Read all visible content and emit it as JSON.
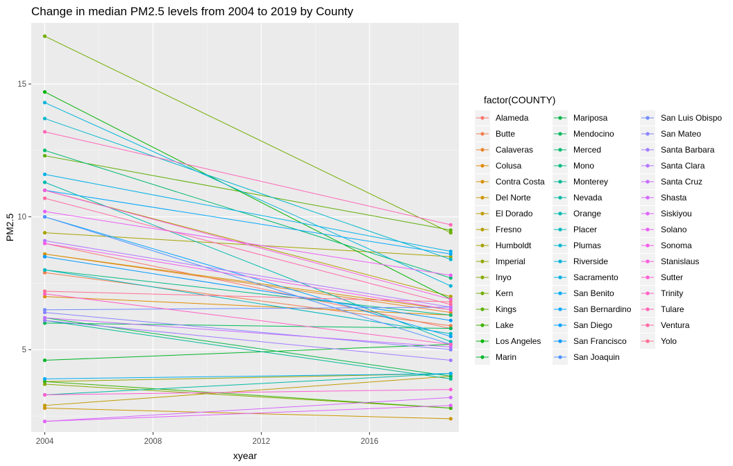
{
  "chart_data": {
    "type": "line",
    "title": "Change in median PM2.5 levels from 2004 to 2019 by County",
    "xlabel": "xyear",
    "ylabel": "PM2.5",
    "legend_title": "factor(COUNTY)",
    "legend_position": "right",
    "grid": true,
    "xlim": [
      2003.5,
      2019.3
    ],
    "ylim": [
      1.9,
      17.3
    ],
    "x_ticks": [
      2004,
      2008,
      2012,
      2016
    ],
    "y_ticks": [
      5,
      10,
      15
    ],
    "x": [
      2004,
      2019
    ],
    "series": [
      {
        "name": "Alameda",
        "color": "#F8766D",
        "values": [
          9.0,
          5.8
        ]
      },
      {
        "name": "Butte",
        "color": "#F17E4F",
        "values": [
          7.9,
          5.9
        ]
      },
      {
        "name": "Calaveras",
        "color": "#E98529",
        "values": [
          8.6,
          6.4
        ]
      },
      {
        "name": "Colusa",
        "color": "#E08B00",
        "values": [
          7.0,
          6.3
        ]
      },
      {
        "name": "Contra Costa",
        "color": "#D69100",
        "values": [
          8.6,
          6.5
        ]
      },
      {
        "name": "Del Norte",
        "color": "#CB9600",
        "values": [
          2.8,
          2.4
        ]
      },
      {
        "name": "El Dorado",
        "color": "#BF9B00",
        "values": [
          2.9,
          4.0
        ]
      },
      {
        "name": "Fresno",
        "color": "#B39F00",
        "values": [
          11.0,
          7.0
        ]
      },
      {
        "name": "Humboldt",
        "color": "#A5A300",
        "values": [
          9.4,
          8.5
        ]
      },
      {
        "name": "Imperial",
        "color": "#96A600",
        "values": [
          3.8,
          4.1
        ]
      },
      {
        "name": "Inyo",
        "color": "#85AA00",
        "values": [
          3.7,
          2.8
        ]
      },
      {
        "name": "Kern",
        "color": "#72AD00",
        "values": [
          16.8,
          9.4
        ]
      },
      {
        "name": "Kings",
        "color": "#5BAF00",
        "values": [
          12.3,
          9.5
        ]
      },
      {
        "name": "Lake",
        "color": "#3DB200",
        "values": [
          3.8,
          2.8
        ]
      },
      {
        "name": "Los Angeles",
        "color": "#00B400",
        "values": [
          14.7,
          6.9
        ]
      },
      {
        "name": "Marin",
        "color": "#00B52A",
        "values": [
          4.6,
          5.2
        ]
      },
      {
        "name": "Mariposa",
        "color": "#00B746",
        "values": [
          6.2,
          4.0
        ]
      },
      {
        "name": "Mendocino",
        "color": "#00B85C",
        "values": [
          6.0,
          5.8
        ]
      },
      {
        "name": "Merced",
        "color": "#00B970",
        "values": [
          12.5,
          7.7
        ]
      },
      {
        "name": "Mono",
        "color": "#00BA82",
        "values": [
          8.0,
          6.3
        ]
      },
      {
        "name": "Monterey",
        "color": "#00BA93",
        "values": [
          6.1,
          3.9
        ]
      },
      {
        "name": "Nevada",
        "color": "#00BAA3",
        "values": [
          3.3,
          4.1
        ]
      },
      {
        "name": "Orange",
        "color": "#00BAB2",
        "values": [
          11.3,
          5.3
        ]
      },
      {
        "name": "Placer",
        "color": "#00B9C0",
        "values": [
          8.0,
          5.6
        ]
      },
      {
        "name": "Plumas",
        "color": "#00B7CE",
        "values": [
          13.7,
          8.4
        ]
      },
      {
        "name": "Riverside",
        "color": "#00B4DB",
        "values": [
          14.3,
          7.4
        ]
      },
      {
        "name": "Sacramento",
        "color": "#00B1E7",
        "values": [
          11.6,
          8.7
        ]
      },
      {
        "name": "San Benito",
        "color": "#00ADF2",
        "values": [
          3.9,
          4.1
        ]
      },
      {
        "name": "San Bernardino",
        "color": "#00A8FB",
        "values": [
          11.0,
          8.6
        ]
      },
      {
        "name": "San Diego",
        "color": "#00A2FF",
        "values": [
          10.0,
          5.5
        ]
      },
      {
        "name": "San Francisco",
        "color": "#009BFF",
        "values": [
          8.5,
          6.1
        ]
      },
      {
        "name": "San Joaquin",
        "color": "#4F93FF",
        "values": [
          10.0,
          5.2
        ]
      },
      {
        "name": "San Luis Obispo",
        "color": "#708BFF",
        "values": [
          6.5,
          6.6
        ]
      },
      {
        "name": "San Mateo",
        "color": "#8B83FF",
        "values": [
          6.4,
          5.0
        ]
      },
      {
        "name": "Santa Barbara",
        "color": "#A27BFF",
        "values": [
          6.1,
          4.6
        ]
      },
      {
        "name": "Santa Clara",
        "color": "#B574FF",
        "values": [
          9.1,
          6.6
        ]
      },
      {
        "name": "Santa Cruz",
        "color": "#C66CFF",
        "values": [
          6.2,
          5.1
        ]
      },
      {
        "name": "Shasta",
        "color": "#D566FF",
        "values": [
          2.3,
          3.2
        ]
      },
      {
        "name": "Siskiyou",
        "color": "#E162FB",
        "values": [
          2.3,
          2.9
        ]
      },
      {
        "name": "Solano",
        "color": "#EB5EF4",
        "values": [
          10.2,
          7.8
        ]
      },
      {
        "name": "Sonoma",
        "color": "#F35CEB",
        "values": [
          9.0,
          6.5
        ]
      },
      {
        "name": "Stanislaus",
        "color": "#F95BE0",
        "values": [
          11.0,
          6.9
        ]
      },
      {
        "name": "Sutter",
        "color": "#FD5DD3",
        "values": [
          3.3,
          3.5
        ]
      },
      {
        "name": "Trinity",
        "color": "#FF60C5",
        "values": [
          7.1,
          5.2
        ]
      },
      {
        "name": "Tulare",
        "color": "#FF64B6",
        "values": [
          13.2,
          9.7
        ]
      },
      {
        "name": "Ventura",
        "color": "#FF69A5",
        "values": [
          10.7,
          6.7
        ]
      },
      {
        "name": "Yolo",
        "color": "#FE6E93",
        "values": [
          7.2,
          6.8
        ]
      }
    ]
  }
}
